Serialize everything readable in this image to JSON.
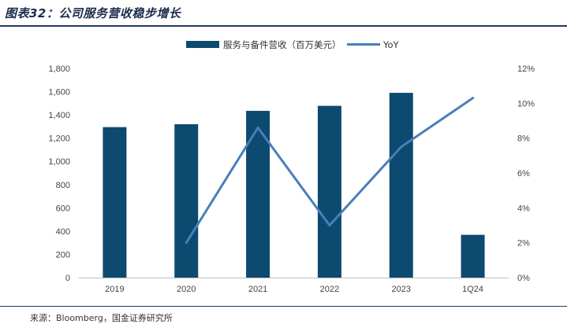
{
  "header": {
    "title": "图表32：公司服务营收稳步增长"
  },
  "footer": {
    "source": "来源：Bloomberg，国金证券研究所"
  },
  "chart_data": {
    "type": "bar",
    "categories": [
      "2019",
      "2020",
      "2021",
      "2022",
      "2023",
      "1Q24"
    ],
    "series": [
      {
        "name": "服务与备件营收（百万美元）",
        "type": "bar",
        "axis": "left",
        "color": "#0d4a70",
        "values": [
          1295,
          1320,
          1435,
          1478,
          1590,
          368
        ]
      },
      {
        "name": "YoY",
        "type": "line",
        "axis": "right",
        "color": "#4a7ebb",
        "values": [
          null,
          2.0,
          8.6,
          3.0,
          7.5,
          10.3
        ]
      }
    ],
    "y_left": {
      "range": [
        0,
        1800
      ],
      "ticks": [
        "0",
        "200",
        "400",
        "600",
        "800",
        "1,000",
        "1,200",
        "1,400",
        "1,600",
        "1,800"
      ]
    },
    "y_right": {
      "range": [
        0,
        12
      ],
      "ticks": [
        "0%",
        "2%",
        "4%",
        "6%",
        "8%",
        "10%",
        "12%"
      ]
    },
    "legend_position": "top-center",
    "grid": false
  }
}
